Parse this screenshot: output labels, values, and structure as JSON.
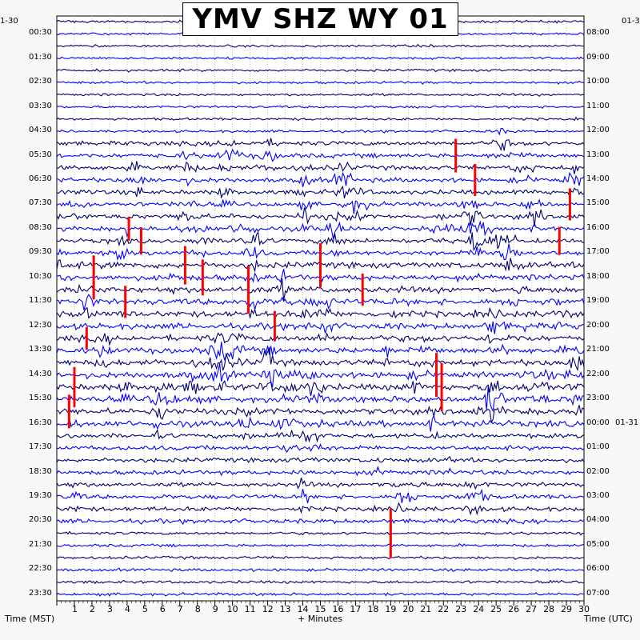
{
  "chart_data": {
    "type": "line",
    "title": "YMV SHZ WY 01",
    "xlabel": "+ Minutes",
    "ylabel_left": "Time (MST)",
    "ylabel_right": "Time (UTC)",
    "date_left": "1-30",
    "date_right": "01-3",
    "date_right_mid": "01-31",
    "x_ticks": [
      "1",
      "2",
      "3",
      "4",
      "5",
      "6",
      "7",
      "8",
      "9",
      "10",
      "11",
      "12",
      "13",
      "14",
      "15",
      "16",
      "17",
      "18",
      "19",
      "20",
      "21",
      "22",
      "23",
      "24",
      "25",
      "26",
      "27",
      "28",
      "29",
      "30"
    ],
    "xlim": [
      0,
      30
    ],
    "left_hour_labels": [
      "00:30",
      "01:30",
      "02:30",
      "03:30",
      "04:30",
      "05:30",
      "06:30",
      "07:30",
      "08:30",
      "09:30",
      "10:30",
      "11:30",
      "12:30",
      "13:30",
      "14:30",
      "15:30",
      "16:30",
      "17:30",
      "18:30",
      "19:30",
      "20:30",
      "21:30",
      "22:30",
      "23:30"
    ],
    "right_hour_labels": [
      "08:00",
      "09:00",
      "10:00",
      "11:00",
      "12:00",
      "13:00",
      "14:00",
      "15:00",
      "16:00",
      "17:00",
      "18:00",
      "19:00",
      "20:00",
      "21:00",
      "22:00",
      "23:00",
      "00:00",
      "01:00",
      "02:00",
      "03:00",
      "04:00",
      "05:00",
      "06:00",
      "07:00"
    ],
    "trace_count": 48,
    "trace_colors": [
      "#00006e",
      "#0000ff"
    ],
    "clip_color": "#ff0000",
    "grid": true
  }
}
